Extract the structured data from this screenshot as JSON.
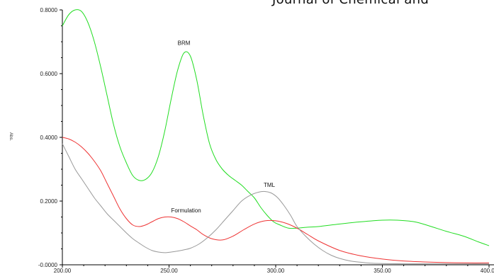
{
  "header_text": "Journal of Chemical and",
  "chart_data": {
    "type": "line",
    "title": "",
    "xlabel": "",
    "ylabel": "Abs.",
    "xlim": [
      200,
      400
    ],
    "ylim": [
      0,
      0.8
    ],
    "x_tick_labels": [
      "200.00",
      "250.00",
      "300.00",
      "350.00",
      "400.00"
    ],
    "y_tick_labels": [
      "-0.0000",
      "0.2000",
      "0.4000",
      "0.6000",
      "0.8000"
    ],
    "grid": false,
    "legend": "none",
    "series": [
      {
        "name": "BRM",
        "color": "#22dd22",
        "x": [
          200,
          203,
          206,
          209,
          212,
          215,
          218,
          221,
          224,
          227,
          230,
          233,
          236,
          239,
          242,
          245,
          248,
          251,
          254,
          257,
          260,
          263,
          266,
          269,
          272,
          275,
          278,
          281,
          284,
          287,
          290,
          293,
          296,
          299,
          302,
          306,
          310,
          315,
          320,
          330,
          340,
          350,
          357,
          365,
          372,
          380,
          388,
          395,
          400
        ],
        "y": [
          0.75,
          0.785,
          0.8,
          0.795,
          0.76,
          0.7,
          0.62,
          0.53,
          0.44,
          0.37,
          0.32,
          0.28,
          0.265,
          0.268,
          0.29,
          0.34,
          0.42,
          0.52,
          0.61,
          0.665,
          0.655,
          0.58,
          0.47,
          0.38,
          0.33,
          0.3,
          0.28,
          0.265,
          0.25,
          0.23,
          0.21,
          0.18,
          0.155,
          0.135,
          0.125,
          0.115,
          0.115,
          0.118,
          0.12,
          0.128,
          0.135,
          0.14,
          0.14,
          0.135,
          0.122,
          0.105,
          0.09,
          0.072,
          0.06
        ]
      },
      {
        "name": "Formulation",
        "color": "#ee3333",
        "x": [
          200,
          203,
          206,
          209,
          212,
          215,
          218,
          221,
          224,
          227,
          230,
          233,
          236,
          239,
          242,
          245,
          248,
          251,
          254,
          257,
          260,
          263,
          266,
          270,
          275,
          280,
          285,
          290,
          295,
          300,
          305,
          310,
          315,
          320,
          330,
          340,
          350,
          360,
          370,
          380,
          390,
          400
        ],
        "y": [
          0.4,
          0.395,
          0.385,
          0.37,
          0.35,
          0.325,
          0.295,
          0.255,
          0.215,
          0.175,
          0.145,
          0.125,
          0.12,
          0.125,
          0.135,
          0.145,
          0.15,
          0.15,
          0.145,
          0.135,
          0.122,
          0.11,
          0.095,
          0.082,
          0.078,
          0.09,
          0.11,
          0.128,
          0.138,
          0.138,
          0.13,
          0.115,
          0.095,
          0.075,
          0.045,
          0.028,
          0.018,
          0.012,
          0.009,
          0.007,
          0.006,
          0.006
        ]
      },
      {
        "name": "TML",
        "color": "#999999",
        "x": [
          200,
          203,
          206,
          209,
          212,
          215,
          218,
          221,
          224,
          227,
          230,
          233,
          236,
          239,
          242,
          245,
          248,
          251,
          254,
          257,
          260,
          264,
          268,
          272,
          276,
          280,
          284,
          288,
          292,
          295,
          298,
          301,
          304,
          307,
          310,
          314,
          318,
          322,
          326,
          330,
          335,
          340,
          345,
          350,
          360,
          370,
          380,
          390,
          400
        ],
        "y": [
          0.38,
          0.34,
          0.3,
          0.27,
          0.24,
          0.21,
          0.185,
          0.16,
          0.14,
          0.12,
          0.1,
          0.082,
          0.068,
          0.055,
          0.045,
          0.04,
          0.038,
          0.04,
          0.043,
          0.047,
          0.052,
          0.065,
          0.085,
          0.11,
          0.14,
          0.17,
          0.2,
          0.218,
          0.228,
          0.23,
          0.225,
          0.21,
          0.185,
          0.155,
          0.12,
          0.09,
          0.065,
          0.045,
          0.03,
          0.02,
          0.012,
          0.008,
          0.005,
          0.004,
          0.003,
          0.003,
          0.003,
          0.003,
          0.003
        ]
      }
    ],
    "annotations": [
      {
        "text": "BRM",
        "x": 257,
        "y": 0.69
      },
      {
        "text": "TML",
        "x": 297,
        "y": 0.245
      },
      {
        "text": "Formulation",
        "x": 258,
        "y": 0.165
      }
    ]
  }
}
